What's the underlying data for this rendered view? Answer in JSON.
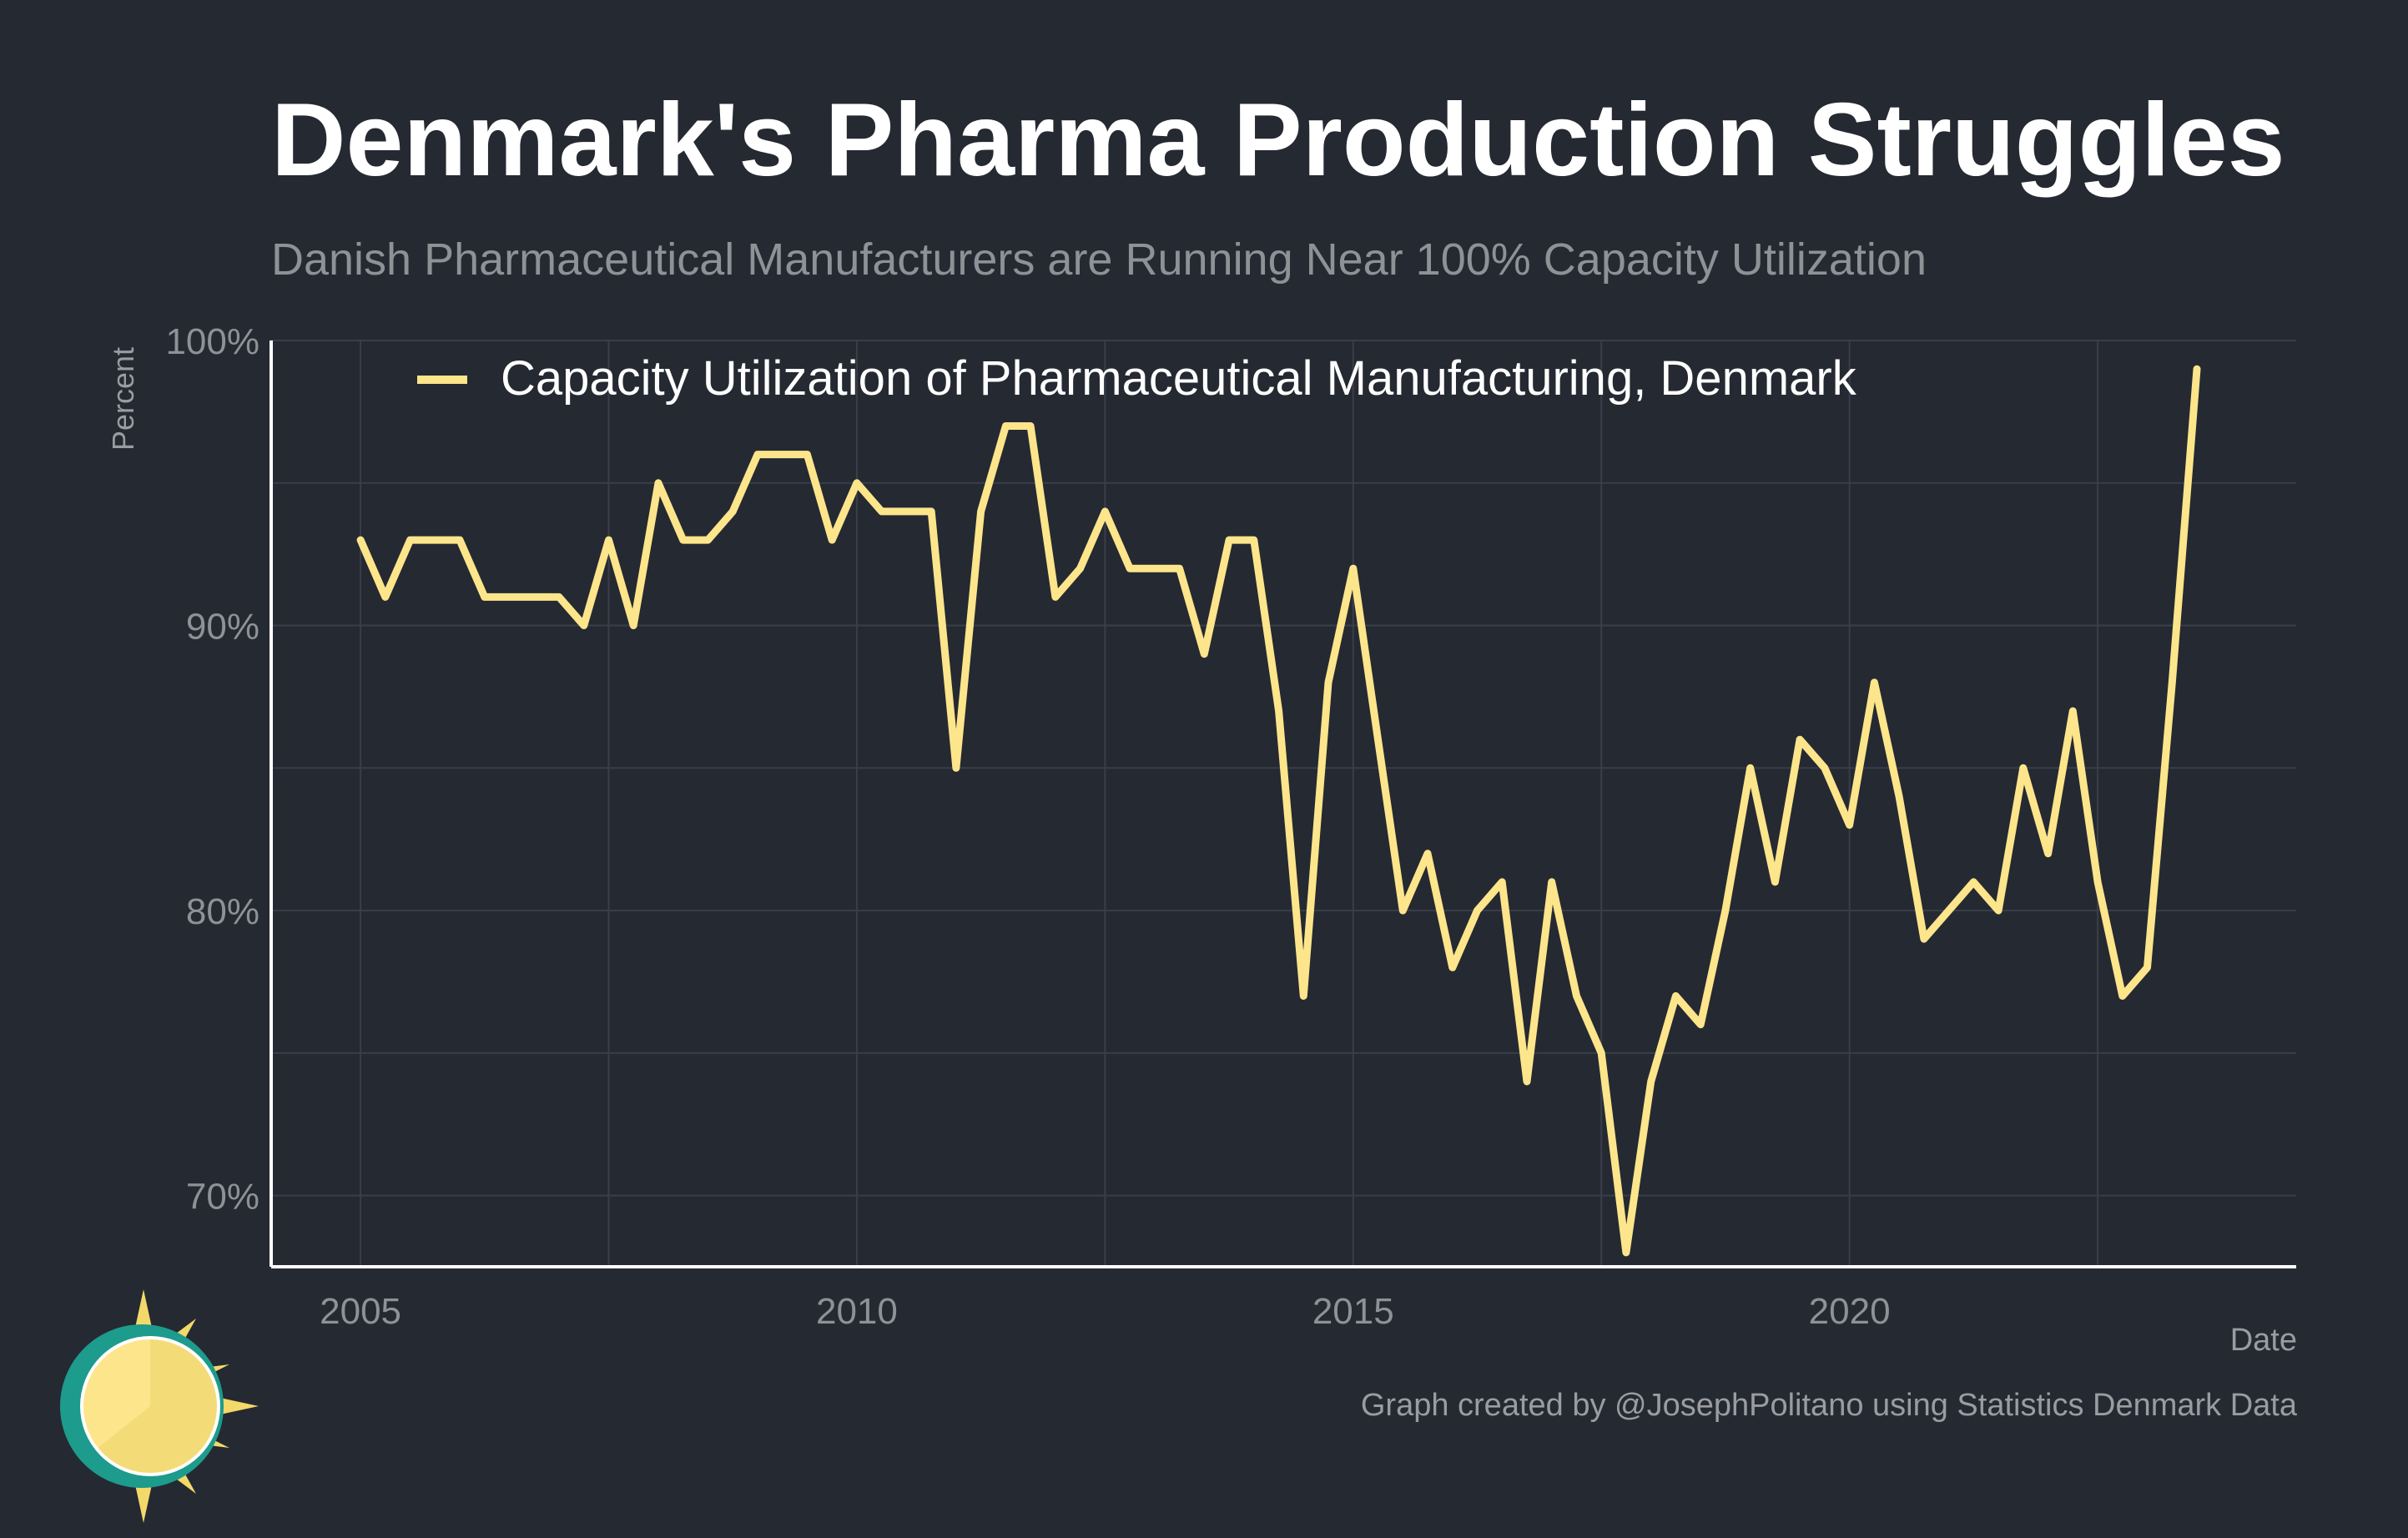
{
  "header": {
    "title": "Denmark's Pharma Production Struggles",
    "subtitle": "Danish Pharmaceutical Manufacturers are Running Near 100% Capacity Utilization"
  },
  "footer": {
    "credit": "Graph created by @JosephPolitano using Statistics Denmark Data"
  },
  "colors": {
    "background": "#252932",
    "line": "#fde58b",
    "grid": "#3a3e48",
    "axis": "#ffffff",
    "tick_text": "#8e9196"
  },
  "logo": {
    "icon": "sun-logo-icon"
  },
  "chart_data": {
    "type": "line",
    "title": "Denmark's Pharma Production Struggles",
    "subtitle": "Danish Pharmaceutical Manufacturers are Running Near 100% Capacity Utilization",
    "xlabel": "Date",
    "ylabel": "Percent",
    "ylim": [
      67.5,
      100
    ],
    "xlim": [
      2004.1,
      2024.5
    ],
    "x_ticks": [
      "2005",
      "2010",
      "2015",
      "2020"
    ],
    "y_ticks": [
      "70%",
      "80%",
      "90%",
      "100%"
    ],
    "grid": true,
    "legend_position": "top-left",
    "series": [
      {
        "name": "Capacity Utilization of Pharmaceutical Manufacturing, Denmark",
        "color": "#fde58b",
        "x": [
          2005.0,
          2005.25,
          2005.5,
          2005.75,
          2006.0,
          2006.25,
          2006.5,
          2006.75,
          2007.0,
          2007.25,
          2007.5,
          2007.75,
          2008.0,
          2008.25,
          2008.5,
          2008.75,
          2009.0,
          2009.25,
          2009.5,
          2009.75,
          2010.0,
          2010.25,
          2010.5,
          2010.75,
          2011.0,
          2011.25,
          2011.5,
          2011.75,
          2012.0,
          2012.25,
          2012.5,
          2012.75,
          2013.0,
          2013.25,
          2013.5,
          2013.75,
          2014.0,
          2014.25,
          2014.5,
          2014.75,
          2015.0,
          2015.25,
          2015.5,
          2015.75,
          2016.0,
          2016.25,
          2016.5,
          2016.75,
          2017.0,
          2017.25,
          2017.5,
          2017.75,
          2018.0,
          2018.25,
          2018.5,
          2018.75,
          2019.0,
          2019.25,
          2019.5,
          2019.75,
          2020.0,
          2020.25,
          2020.5,
          2020.75,
          2021.0,
          2021.25,
          2021.5,
          2021.75,
          2022.0,
          2022.25,
          2022.5,
          2022.75,
          2023.0,
          2023.25,
          2023.5
        ],
        "values": [
          93,
          91,
          93,
          93,
          93,
          91,
          91,
          91,
          91,
          90,
          93,
          90,
          95,
          93,
          93,
          94,
          96,
          96,
          96,
          93,
          95,
          94,
          94,
          94,
          85,
          94,
          97,
          97,
          91,
          92,
          94,
          92,
          92,
          92,
          89,
          93,
          93,
          87,
          77,
          88,
          92,
          86,
          80,
          82,
          78,
          80,
          81,
          74,
          81,
          77,
          75,
          68,
          74,
          77,
          76,
          80,
          85,
          81,
          86,
          85,
          83,
          88,
          84,
          79,
          80,
          81,
          80,
          85,
          82,
          87,
          81,
          77,
          78,
          88,
          99
        ]
      }
    ]
  }
}
